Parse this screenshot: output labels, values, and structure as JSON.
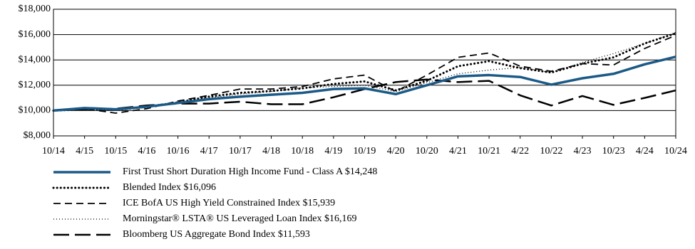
{
  "chart_data": {
    "type": "line",
    "categories": [
      "10/14",
      "4/15",
      "10/15",
      "4/16",
      "10/16",
      "4/17",
      "10/17",
      "4/18",
      "10/18",
      "4/19",
      "10/19",
      "4/20",
      "10/20",
      "4/21",
      "10/21",
      "4/22",
      "10/22",
      "4/23",
      "10/23",
      "4/24",
      "10/24"
    ],
    "ylim": [
      8000,
      18000
    ],
    "yticks": [
      {
        "value": 8000,
        "label": "$8,000"
      },
      {
        "value": 10000,
        "label": "$10,000"
      },
      {
        "value": 12000,
        "label": "$12,000"
      },
      {
        "value": 14000,
        "label": "$14,000"
      },
      {
        "value": 16000,
        "label": "$16,000"
      },
      {
        "value": 18000,
        "label": "$18,000"
      }
    ],
    "grid": true,
    "legend": "bottom",
    "series": [
      {
        "name": "First Trust Short Duration High Income Fund - Class A $14,248",
        "color": "#1b5a87",
        "style": "solid",
        "values": [
          10000,
          10200,
          10100,
          10300,
          10600,
          10900,
          11100,
          11250,
          11400,
          11700,
          11750,
          11300,
          12000,
          12700,
          12800,
          12650,
          12050,
          12550,
          12900,
          13650,
          14248
        ]
      },
      {
        "name": "Blended Index $16,096",
        "color": "#000000",
        "style": "dotted",
        "values": [
          10000,
          10100,
          10050,
          10300,
          10650,
          11100,
          11400,
          11550,
          11750,
          12100,
          12300,
          11600,
          12350,
          13500,
          13900,
          13350,
          13000,
          13700,
          14200,
          15300,
          16096
        ]
      },
      {
        "name": "ICE BofA US High Yield Constrained Index $15,939",
        "color": "#000000",
        "style": "dashed",
        "values": [
          10000,
          10150,
          9800,
          10150,
          10750,
          11200,
          11700,
          11700,
          11900,
          12500,
          12800,
          11500,
          12800,
          14200,
          14550,
          13500,
          13100,
          13700,
          13600,
          14900,
          15939
        ]
      },
      {
        "name": "Morningstar® LSTA® US Leveraged Loan Index $16,169",
        "color": "#000000",
        "style": "fine-dotted",
        "values": [
          10000,
          10100,
          10000,
          10250,
          10600,
          11000,
          11300,
          11500,
          11800,
          11900,
          12000,
          11500,
          12200,
          12900,
          13200,
          13400,
          13000,
          13800,
          14500,
          15300,
          16169
        ]
      },
      {
        "name": "Bloomberg US Aggregate Bond Index $11,593",
        "color": "#000000",
        "style": "long-dashed",
        "values": [
          10000,
          10100,
          10150,
          10400,
          10550,
          10550,
          10700,
          10500,
          10500,
          11050,
          11700,
          12250,
          12450,
          12250,
          12350,
          11200,
          10400,
          11150,
          10450,
          11000,
          11593
        ]
      }
    ]
  }
}
